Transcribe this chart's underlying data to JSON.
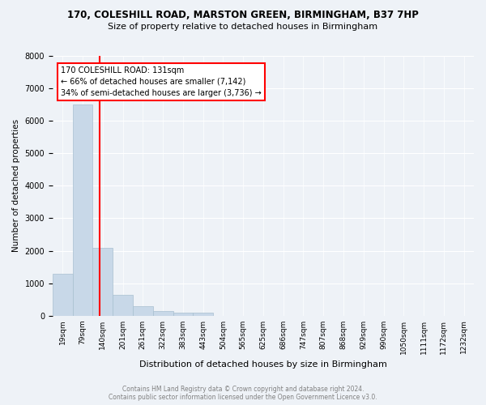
{
  "title": "170, COLESHILL ROAD, MARSTON GREEN, BIRMINGHAM, B37 7HP",
  "subtitle": "Size of property relative to detached houses in Birmingham",
  "xlabel": "Distribution of detached houses by size in Birmingham",
  "ylabel": "Number of detached properties",
  "bar_color": "#c8d8e8",
  "bar_edge_color": "#a8c0d0",
  "bin_labels": [
    "19sqm",
    "79sqm",
    "140sqm",
    "201sqm",
    "261sqm",
    "322sqm",
    "383sqm",
    "443sqm",
    "504sqm",
    "565sqm",
    "625sqm",
    "686sqm",
    "747sqm",
    "807sqm",
    "868sqm",
    "929sqm",
    "990sqm",
    "1050sqm",
    "1111sqm",
    "1172sqm",
    "1232sqm"
  ],
  "bar_values": [
    1300,
    6500,
    2100,
    650,
    280,
    130,
    100,
    80,
    0,
    0,
    0,
    0,
    0,
    0,
    0,
    0,
    0,
    0,
    0,
    0,
    0
  ],
  "red_line_x": 1.85,
  "annotation_text": "170 COLESHILL ROAD: 131sqm\n← 66% of detached houses are smaller (7,142)\n34% of semi-detached houses are larger (3,736) →",
  "ylim": [
    0,
    8000
  ],
  "yticks": [
    0,
    1000,
    2000,
    3000,
    4000,
    5000,
    6000,
    7000,
    8000
  ],
  "background_color": "#eef2f7",
  "plot_background": "#eef2f7",
  "footer_line1": "Contains HM Land Registry data © Crown copyright and database right 2024.",
  "footer_line2": "Contains public sector information licensed under the Open Government Licence v3.0."
}
